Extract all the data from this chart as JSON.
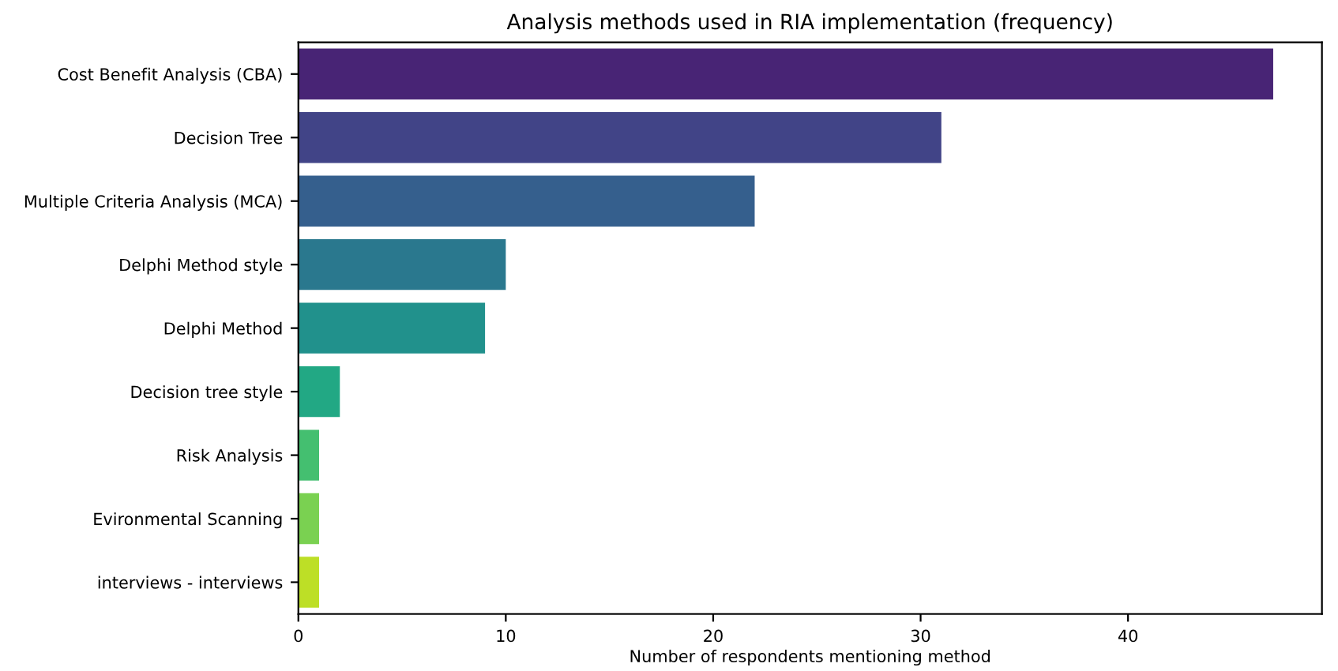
{
  "chart_data": {
    "type": "bar",
    "orientation": "horizontal",
    "title": "Analysis methods used in RIA implementation (frequency)",
    "xlabel": "Number of respondents mentioning method",
    "categories": [
      "Cost Benefit Analysis (CBA)",
      "Decision Tree",
      "Multiple Criteria Analysis (MCA)",
      "Delphi Method style",
      "Delphi Method",
      "Decision tree style",
      "Risk Analysis",
      "Evironmental Scanning",
      "interviews - interviews"
    ],
    "values": [
      47,
      31,
      22,
      10,
      9,
      2,
      1,
      1,
      1
    ],
    "colors": [
      "#482475",
      "#414487",
      "#355f8d",
      "#2a788e",
      "#21918c",
      "#22a884",
      "#44bf70",
      "#7ad151",
      "#bddf26"
    ],
    "xlim": [
      0,
      49.35
    ],
    "xticks": [
      0,
      10,
      20,
      30,
      40
    ],
    "grid": false,
    "legend": false
  }
}
